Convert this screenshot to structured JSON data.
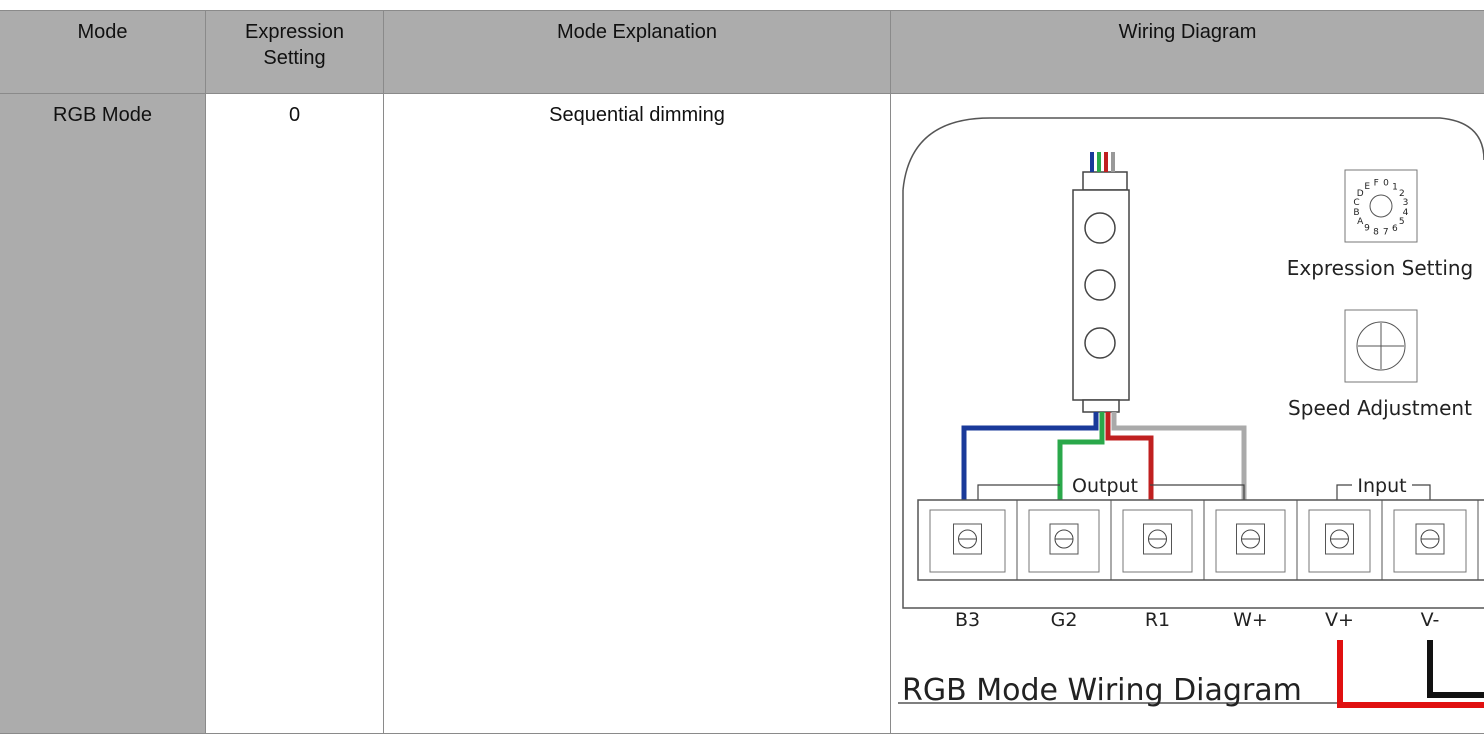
{
  "table": {
    "header": [
      "Mode",
      "Expression Setting",
      "Mode Explanation",
      "Wiring Diagram"
    ],
    "rows": [
      [
        "RGB Mode",
        "0",
        "Sequential dimming"
      ]
    ]
  },
  "diagram": {
    "dial_labels": [
      "0",
      "1",
      "2",
      "3",
      "4",
      "5",
      "6",
      "7",
      "8",
      "9",
      "A",
      "B",
      "C",
      "D",
      "E",
      "F"
    ],
    "expression_label": "Expression Setting",
    "speed_label": "Speed Adjustment",
    "output_label": "Output",
    "input_label": "Input",
    "terminals": [
      "B3",
      "G2",
      "R1",
      "W+",
      "V+",
      "V-"
    ],
    "caption": "RGB Mode Wiring Diagram"
  }
}
